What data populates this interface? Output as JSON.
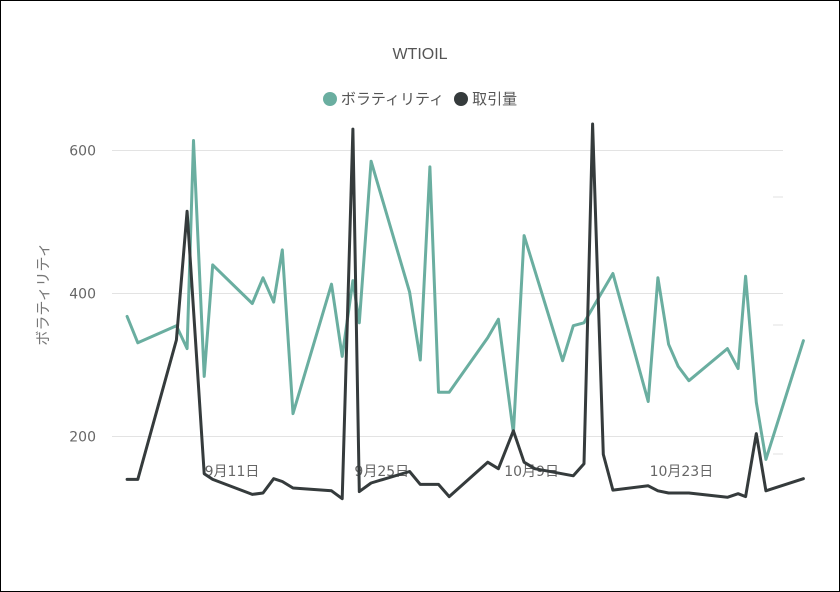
{
  "chart_data": {
    "type": "line",
    "title": "WTIOIL",
    "ylabel": "ボラティリティ",
    "xlabel": "",
    "x_tick_labels": [
      "9月11日",
      "9月25日",
      "10月9日",
      "10月23日"
    ],
    "x_tick_days": [
      11,
      25,
      39,
      53
    ],
    "y_ticks": [
      200,
      400,
      600
    ],
    "ylim": [
      100,
      700
    ],
    "xlim": [
      1.0,
      61.0
    ],
    "grid": true,
    "legend": "top-center",
    "colors": {
      "volatility": "#6aaea0",
      "volume": "#353b3c"
    },
    "series": [
      {
        "name": "ボラティリティ",
        "color_key": "volatility",
        "points": [
          [
            1.2,
            368
          ],
          [
            2.2,
            331
          ],
          [
            5.8,
            355
          ],
          [
            6.8,
            323
          ],
          [
            7.4,
            614
          ],
          [
            8.4,
            284
          ],
          [
            9.2,
            440
          ],
          [
            12.9,
            386
          ],
          [
            13.9,
            422
          ],
          [
            14.9,
            388
          ],
          [
            15.7,
            461
          ],
          [
            16.7,
            232
          ],
          [
            20.3,
            413
          ],
          [
            21.3,
            312
          ],
          [
            22.3,
            418
          ],
          [
            22.9,
            359
          ],
          [
            24.0,
            585
          ],
          [
            27.6,
            402
          ],
          [
            28.6,
            307
          ],
          [
            29.5,
            577
          ],
          [
            30.3,
            262
          ],
          [
            31.3,
            262
          ],
          [
            34.9,
            338
          ],
          [
            35.9,
            364
          ],
          [
            37.3,
            205
          ],
          [
            38.3,
            481
          ],
          [
            41.9,
            306
          ],
          [
            42.9,
            355
          ],
          [
            43.9,
            359
          ],
          [
            46.6,
            428
          ],
          [
            49.9,
            249
          ],
          [
            50.8,
            422
          ],
          [
            51.8,
            329
          ],
          [
            52.7,
            298
          ],
          [
            53.7,
            278
          ],
          [
            57.3,
            323
          ],
          [
            58.3,
            295
          ],
          [
            59.0,
            424
          ],
          [
            60.0,
            248
          ],
          [
            60.9,
            168
          ],
          [
            64.4,
            334
          ]
        ]
      },
      {
        "name": "取引量",
        "color_key": "volume",
        "points": [
          [
            1.2,
            140
          ],
          [
            2.2,
            140
          ],
          [
            5.8,
            335
          ],
          [
            6.8,
            515
          ],
          [
            8.4,
            148
          ],
          [
            9.2,
            140
          ],
          [
            12.9,
            119
          ],
          [
            13.9,
            121
          ],
          [
            14.9,
            141
          ],
          [
            15.7,
            137
          ],
          [
            16.7,
            128
          ],
          [
            20.3,
            124
          ],
          [
            21.3,
            113
          ],
          [
            22.3,
            630
          ],
          [
            22.9,
            123
          ],
          [
            24.0,
            135
          ],
          [
            27.6,
            151
          ],
          [
            28.6,
            133
          ],
          [
            30.3,
            133
          ],
          [
            31.3,
            116
          ],
          [
            34.9,
            164
          ],
          [
            35.9,
            155
          ],
          [
            37.3,
            208
          ],
          [
            38.3,
            164
          ],
          [
            39.3,
            155
          ],
          [
            42.9,
            145
          ],
          [
            43.9,
            162
          ],
          [
            44.7,
            637
          ],
          [
            45.7,
            175
          ],
          [
            46.6,
            125
          ],
          [
            49.9,
            131
          ],
          [
            50.8,
            124
          ],
          [
            51.8,
            121
          ],
          [
            53.7,
            121
          ],
          [
            57.3,
            115
          ],
          [
            58.3,
            120
          ],
          [
            59.0,
            116
          ],
          [
            60.0,
            204
          ],
          [
            60.9,
            124
          ],
          [
            64.4,
            141
          ]
        ]
      }
    ]
  }
}
